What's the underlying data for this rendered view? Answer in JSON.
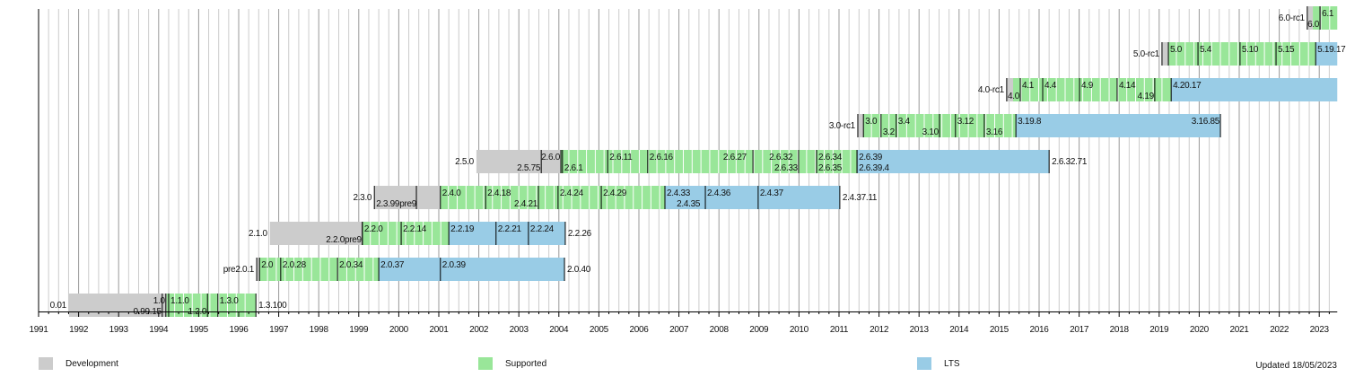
{
  "chart_data": {
    "type": "timeline",
    "title": "",
    "xlabel": "",
    "ylabel": "",
    "xlim": [
      1991,
      2023.45
    ],
    "x_ticks": [
      1991,
      1992,
      1993,
      1994,
      1995,
      1996,
      1997,
      1998,
      1999,
      2000,
      2001,
      2002,
      2003,
      2004,
      2005,
      2006,
      2007,
      2008,
      2009,
      2010,
      2011,
      2012,
      2013,
      2014,
      2015,
      2016,
      2017,
      2018,
      2019,
      2020,
      2021,
      2022,
      2023
    ],
    "grid": true,
    "colors": {
      "dev": "#cccccc",
      "sup": "#99e699",
      "lts": "#99cce6"
    },
    "legend": {
      "placement": "bottom",
      "items": [
        {
          "key": "dev",
          "label": "Development"
        },
        {
          "key": "sup",
          "label": "Supported"
        },
        {
          "key": "lts",
          "label": "LTS"
        }
      ]
    },
    "updated": "Updated 18/05/2023",
    "rows": [
      {
        "left": "0.01",
        "right": "1.3.100",
        "segments": [
          [
            1991.76,
            1994.2,
            "dev"
          ],
          [
            1994.2,
            1996.43,
            "sup"
          ]
        ],
        "markers": [
          {
            "x": 1994.09,
            "label": "0.99.15",
            "pos": "bottom",
            "align": "end"
          },
          {
            "x": 1994.18,
            "label": "1.0",
            "pos": "top",
            "align": "end"
          },
          {
            "x": 1994.25,
            "label": "1.1.0",
            "pos": "top",
            "align": "start"
          },
          {
            "x": 1995.22,
            "label": "1.2.0",
            "pos": "bottom",
            "align": "end"
          },
          {
            "x": 1995.48,
            "label": "1.3.0",
            "pos": "top",
            "align": "start"
          },
          {
            "x": 1996.43,
            "label": "",
            "pos": "top",
            "align": "start"
          }
        ]
      },
      {
        "left": "pre2.0.1",
        "right": "2.0.40",
        "segments": [
          [
            1996.45,
            1996.52,
            "dev"
          ],
          [
            1996.52,
            1999.5,
            "sup"
          ],
          [
            1999.5,
            2004.14,
            "lts"
          ]
        ],
        "markers": [
          {
            "x": 1996.45,
            "label": "",
            "pos": "top",
            "align": "start"
          },
          {
            "x": 1996.52,
            "label": "2.0",
            "pos": "top",
            "align": "start"
          },
          {
            "x": 1997.05,
            "label": "2.0.28",
            "pos": "top",
            "align": "start"
          },
          {
            "x": 1998.47,
            "label": "2.0.34",
            "pos": "top",
            "align": "start"
          },
          {
            "x": 1999.5,
            "label": "2.0.37",
            "pos": "top",
            "align": "start"
          },
          {
            "x": 2001.04,
            "label": "2.0.39",
            "pos": "top",
            "align": "start"
          },
          {
            "x": 2004.14,
            "label": "",
            "pos": "top",
            "align": "start"
          }
        ]
      },
      {
        "left": "2.1.0",
        "right": "2.2.26",
        "segments": [
          [
            1996.78,
            1999.09,
            "dev"
          ],
          [
            1999.09,
            2001.25,
            "sup"
          ],
          [
            2001.25,
            2004.16,
            "lts"
          ]
        ],
        "markers": [
          {
            "x": 1999.09,
            "label": "2.2.0pre9",
            "pos": "bottom",
            "align": "end"
          },
          {
            "x": 1999.09,
            "label": "2.2.0",
            "pos": "top",
            "align": "start"
          },
          {
            "x": 2000.06,
            "label": "2.2.14",
            "pos": "top",
            "align": "start"
          },
          {
            "x": 2001.25,
            "label": "2.2.19",
            "pos": "top",
            "align": "start"
          },
          {
            "x": 2002.43,
            "label": "2.2.21",
            "pos": "top",
            "align": "start"
          },
          {
            "x": 2003.24,
            "label": "2.2.24",
            "pos": "top",
            "align": "start"
          },
          {
            "x": 2004.16,
            "label": "",
            "pos": "top",
            "align": "start"
          }
        ]
      },
      {
        "left": "2.3.0",
        "right": "2.4.37.11",
        "segments": [
          [
            1999.39,
            2001.04,
            "dev"
          ],
          [
            2001.04,
            2006.65,
            "sup"
          ],
          [
            2006.65,
            2011.02,
            "lts"
          ]
        ],
        "markers": [
          {
            "x": 1999.39,
            "label": "2.3.99pre9",
            "pos": "bottom",
            "align": "start"
          },
          {
            "x": 2000.44,
            "label": "",
            "pos": "top",
            "align": "start"
          },
          {
            "x": 2001.04,
            "label": "2.4.0",
            "pos": "top",
            "align": "start"
          },
          {
            "x": 2002.17,
            "label": "2.4.18",
            "pos": "top",
            "align": "start"
          },
          {
            "x": 2003.49,
            "label": "2.4.21",
            "pos": "bottom",
            "align": "end"
          },
          {
            "x": 2003.98,
            "label": "2.4.24",
            "pos": "top",
            "align": "start"
          },
          {
            "x": 2005.06,
            "label": "2.4.29",
            "pos": "top",
            "align": "start"
          },
          {
            "x": 2006.65,
            "label": "2.4.33",
            "pos": "top",
            "align": "start"
          },
          {
            "x": 2006.9,
            "label": "2.4.35",
            "pos": "bottom",
            "align": "start",
            "noline": true
          },
          {
            "x": 2007.66,
            "label": "2.4.36",
            "pos": "top",
            "align": "start"
          },
          {
            "x": 2008.98,
            "label": "2.4.37",
            "pos": "top",
            "align": "start"
          },
          {
            "x": 2011.02,
            "label": "",
            "pos": "top",
            "align": "start"
          }
        ]
      },
      {
        "left": "2.5.0",
        "right": "2.6.32.71",
        "segments": [
          [
            2001.94,
            2004.05,
            "dev"
          ],
          [
            2004.05,
            2011.45,
            "sup"
          ],
          [
            2011.45,
            2016.25,
            "lts"
          ]
        ],
        "markers": [
          {
            "x": 2003.56,
            "label": "2.5.75",
            "pos": "bottom",
            "align": "end"
          },
          {
            "x": 2004.05,
            "label": "2.6.0",
            "pos": "top",
            "align": "end"
          },
          {
            "x": 2004.09,
            "label": "2.6.1",
            "pos": "bottom",
            "align": "start"
          },
          {
            "x": 2005.22,
            "label": "2.6.11",
            "pos": "top",
            "align": "start"
          },
          {
            "x": 2006.22,
            "label": "2.6.16",
            "pos": "top",
            "align": "start"
          },
          {
            "x": 2008.06,
            "label": "2.6.27",
            "pos": "top",
            "align": "start",
            "noline": true
          },
          {
            "x": 2008.85,
            "label": "",
            "pos": "top",
            "align": "start"
          },
          {
            "x": 2009.21,
            "label": "2.6.32",
            "pos": "top",
            "align": "start",
            "noline": true
          },
          {
            "x": 2009.99,
            "label": "2.6.33",
            "pos": "bottom",
            "align": "end"
          },
          {
            "x": 2010.44,
            "label": "2.6.34",
            "pos": "top",
            "align": "start"
          },
          {
            "x": 2010.44,
            "label": "2.6.35",
            "pos": "bottom",
            "align": "start"
          },
          {
            "x": 2011.45,
            "label": "2.6.39",
            "pos": "top",
            "align": "start"
          },
          {
            "x": 2011.45,
            "label": "2.6.39.4",
            "pos": "bottom",
            "align": "start"
          },
          {
            "x": 2016.25,
            "label": "",
            "pos": "top",
            "align": "start"
          }
        ]
      },
      {
        "left": "3.0-rc1",
        "right": "",
        "segments": [
          [
            2011.47,
            2011.61,
            "dev"
          ],
          [
            2011.61,
            2015.42,
            "sup"
          ],
          [
            2015.42,
            2020.53,
            "lts"
          ]
        ],
        "markers": [
          {
            "x": 2011.47,
            "label": "",
            "pos": "top",
            "align": "start"
          },
          {
            "x": 2011.61,
            "label": "3.0",
            "pos": "top",
            "align": "start"
          },
          {
            "x": 2012.05,
            "label": "3.2",
            "pos": "bottom",
            "align": "start"
          },
          {
            "x": 2012.43,
            "label": "3.4",
            "pos": "top",
            "align": "start"
          },
          {
            "x": 2013.51,
            "label": "3.10",
            "pos": "bottom",
            "align": "end"
          },
          {
            "x": 2013.91,
            "label": "3.12",
            "pos": "top",
            "align": "start"
          },
          {
            "x": 2014.63,
            "label": "3.16",
            "pos": "bottom",
            "align": "start"
          },
          {
            "x": 2015.42,
            "label": "3.19.8",
            "pos": "top",
            "align": "start"
          },
          {
            "x": 2020.53,
            "label": "3.16.85",
            "pos": "top",
            "align": "end"
          }
        ]
      },
      {
        "left": "4.0-rc1",
        "right": "",
        "segments": [
          [
            2015.19,
            2015.35,
            "dev"
          ],
          [
            2015.35,
            2019.3,
            "sup"
          ],
          [
            2019.3,
            2023.45,
            "lts"
          ]
        ],
        "markers": [
          {
            "x": 2015.19,
            "label": "",
            "pos": "top",
            "align": "start"
          },
          {
            "x": 2015.53,
            "label": "4.0",
            "pos": "bottom",
            "align": "end"
          },
          {
            "x": 2015.53,
            "label": "4.1",
            "pos": "top",
            "align": "start"
          },
          {
            "x": 2016.09,
            "label": "4.4",
            "pos": "top",
            "align": "start"
          },
          {
            "x": 2017.01,
            "label": "4.9",
            "pos": "top",
            "align": "start"
          },
          {
            "x": 2017.95,
            "label": "4.14",
            "pos": "top",
            "align": "start"
          },
          {
            "x": 2018.89,
            "label": "4.19",
            "pos": "bottom",
            "align": "end"
          },
          {
            "x": 2019.3,
            "label": "4.20.17",
            "pos": "top",
            "align": "start"
          }
        ]
      },
      {
        "left": "5.0-rc1",
        "right": "",
        "segments": [
          [
            2019.07,
            2019.23,
            "dev"
          ],
          [
            2019.23,
            2022.91,
            "sup"
          ],
          [
            2022.91,
            2023.45,
            "lts"
          ]
        ],
        "markers": [
          {
            "x": 2019.07,
            "label": "",
            "pos": "top",
            "align": "start"
          },
          {
            "x": 2019.23,
            "label": "5.0",
            "pos": "top",
            "align": "start"
          },
          {
            "x": 2019.97,
            "label": "5.4",
            "pos": "top",
            "align": "start"
          },
          {
            "x": 2021.02,
            "label": "5.10",
            "pos": "top",
            "align": "start"
          },
          {
            "x": 2021.92,
            "label": "5.15",
            "pos": "top",
            "align": "start"
          },
          {
            "x": 2022.91,
            "label": "5.19.17",
            "pos": "top",
            "align": "start"
          }
        ]
      },
      {
        "left": "6.0-rc1",
        "right": "",
        "segments": [
          [
            2022.7,
            2022.84,
            "dev"
          ],
          [
            2022.84,
            2023.45,
            "sup"
          ]
        ],
        "markers": [
          {
            "x": 2022.7,
            "label": "",
            "pos": "top",
            "align": "start"
          },
          {
            "x": 2023.02,
            "label": "6.0",
            "pos": "bottom",
            "align": "end"
          },
          {
            "x": 2023.02,
            "label": "6.1",
            "pos": "top",
            "align": "start"
          }
        ]
      }
    ]
  }
}
